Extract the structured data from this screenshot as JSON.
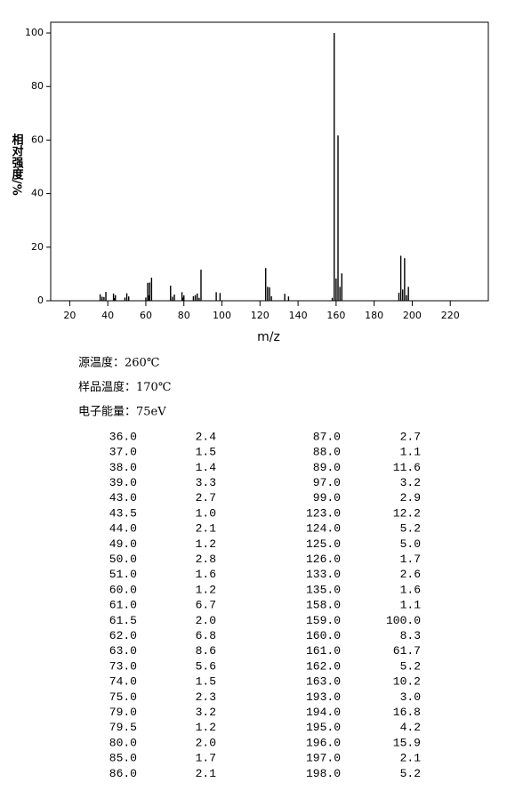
{
  "chart_data": {
    "type": "bar",
    "xlabel": "m/z",
    "ylabel": "相对强度/%",
    "xlim": [
      10,
      240
    ],
    "xticks": [
      20,
      40,
      60,
      80,
      100,
      120,
      140,
      160,
      180,
      200,
      220
    ],
    "ylim": [
      0,
      104
    ],
    "yticks": [
      0,
      20,
      40,
      60,
      80,
      100
    ],
    "color": "#000000",
    "x": [
      36,
      37,
      38,
      39,
      43,
      43.5,
      44,
      49,
      50,
      51,
      60,
      61,
      61.5,
      62,
      63,
      73,
      74,
      75,
      79,
      79.5,
      80,
      85,
      86,
      87,
      88,
      89,
      97,
      99,
      123,
      124,
      125,
      126,
      133,
      135,
      158,
      159,
      160,
      161,
      162,
      163,
      193,
      194,
      195,
      196,
      197,
      198
    ],
    "x_labels": [
      "36.0",
      "37.0",
      "38.0",
      "39.0",
      "43.0",
      "43.5",
      "44.0",
      "49.0",
      "50.0",
      "51.0",
      "60.0",
      "61.0",
      "61.5",
      "62.0",
      "63.0",
      "73.0",
      "74.0",
      "75.0",
      "79.0",
      "79.5",
      "80.0",
      "85.0",
      "86.0",
      "87.0",
      "88.0",
      "89.0",
      "97.0",
      "99.0",
      "123.0",
      "124.0",
      "125.0",
      "126.0",
      "133.0",
      "135.0",
      "158.0",
      "159.0",
      "160.0",
      "161.0",
      "162.0",
      "163.0",
      "193.0",
      "194.0",
      "195.0",
      "196.0",
      "197.0",
      "198.0"
    ],
    "values": [
      2.4,
      1.5,
      1.4,
      3.3,
      2.7,
      1,
      2.1,
      1.2,
      2.8,
      1.6,
      1.2,
      6.7,
      2,
      6.8,
      8.6,
      5.6,
      1.5,
      2.3,
      3.2,
      1.2,
      2,
      1.7,
      2.1,
      2.7,
      1.1,
      11.6,
      3.2,
      2.9,
      12.2,
      5.2,
      5,
      1.7,
      2.6,
      1.6,
      1.1,
      100,
      8.3,
      61.7,
      5.2,
      10.2,
      3,
      16.8,
      4.2,
      15.9,
      2.1,
      5.2
    ],
    "value_labels": [
      "2.4",
      "1.5",
      "1.4",
      "3.3",
      "2.7",
      "1.0",
      "2.1",
      "1.2",
      "2.8",
      "1.6",
      "1.2",
      "6.7",
      "2.0",
      "6.8",
      "8.6",
      "5.6",
      "1.5",
      "2.3",
      "3.2",
      "1.2",
      "2.0",
      "1.7",
      "2.1",
      "2.7",
      "1.1",
      "11.6",
      "3.2",
      "2.9",
      "12.2",
      "5.2",
      "5.0",
      "1.7",
      "2.6",
      "1.6",
      "1.1",
      "100.0",
      "8.3",
      "61.7",
      "5.2",
      "10.2",
      "3.0",
      "16.8",
      "4.2",
      "15.9",
      "2.1",
      "5.2"
    ]
  },
  "info": [
    "源温度：260℃",
    "样品温度：170℃",
    "电子能量：75eV"
  ]
}
